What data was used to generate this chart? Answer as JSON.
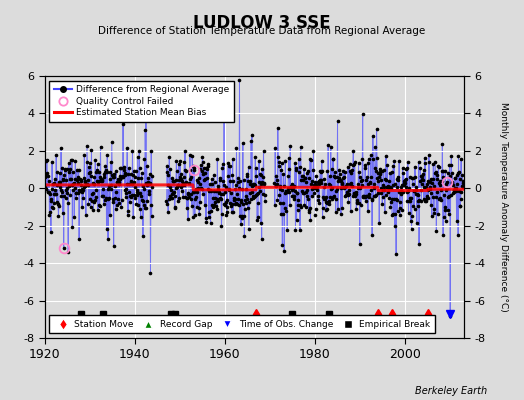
{
  "title": "LUDLOW 3 SSE",
  "subtitle": "Difference of Station Temperature Data from Regional Average",
  "ylabel_right": "Monthly Temperature Anomaly Difference (°C)",
  "xlim": [
    1920,
    2013
  ],
  "ylim": [
    -8,
    6
  ],
  "yticks": [
    -8,
    -6,
    -4,
    -2,
    0,
    2,
    4,
    6
  ],
  "xticks": [
    1920,
    1940,
    1960,
    1980,
    2000
  ],
  "background_color": "#dcdcdc",
  "plot_bg_color": "#dcdcdc",
  "grid_color": "#ffffff",
  "line_color": "#4444ff",
  "line_color_alpha": 0.7,
  "dot_color": "#000000",
  "bias_color": "#ff0000",
  "berkeley_earth_text": "Berkeley Earth",
  "station_move_years": [
    1967,
    1994,
    1997,
    2005
  ],
  "empirical_break_years": [
    1928,
    1933,
    1948,
    1949,
    1975,
    1983
  ],
  "time_obs_years": [
    2010
  ],
  "qc_failed_years": [
    1924,
    1953,
    2009
  ],
  "marker_y": -6.7,
  "seed": 42
}
